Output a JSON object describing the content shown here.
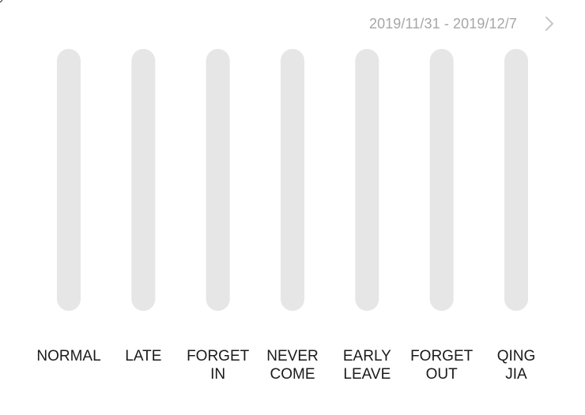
{
  "header": {
    "date_range": "2019/11/31 - 2019/12/7",
    "next_icon": "chevron-right-icon"
  },
  "colors": {
    "track": "#e6e6e6",
    "label": "#1a1a1a",
    "date_text": "#a6a6a6",
    "chevron": "#c7c7c7"
  },
  "chart_data": {
    "type": "bar",
    "categories": [
      [
        "NORMAL"
      ],
      [
        "LATE"
      ],
      [
        "FORGET",
        "IN"
      ],
      [
        "NEVER",
        "COME"
      ],
      [
        "EARLY",
        "LEAVE"
      ],
      [
        "FORGET",
        "OUT"
      ],
      [
        "QING",
        "JIA"
      ]
    ],
    "values": [
      0,
      0,
      0,
      0,
      0,
      0,
      0
    ],
    "ylim": [
      0,
      1
    ],
    "title": "",
    "xlabel": "",
    "ylabel": "",
    "grid": false,
    "legend": "none"
  }
}
